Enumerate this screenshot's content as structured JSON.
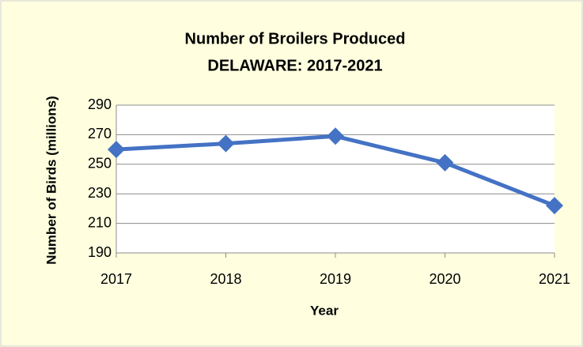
{
  "chart_data": {
    "type": "line",
    "title": "Number of Broilers Produced",
    "subtitle": "DELAWARE: 2017-2021",
    "x_label": "Year",
    "y_label": "Number of Birds (millions)",
    "x": [
      2017,
      2018,
      2019,
      2020,
      2021
    ],
    "values": [
      260,
      264,
      269,
      251,
      222
    ],
    "color": "#4472c4",
    "xlim": [
      2017,
      2021
    ],
    "xticks": [
      2017,
      2018,
      2019,
      2020,
      2021
    ],
    "ylim": [
      190,
      290
    ],
    "yticks": [
      190,
      210,
      230,
      250,
      270,
      290
    ],
    "grid": true
  }
}
